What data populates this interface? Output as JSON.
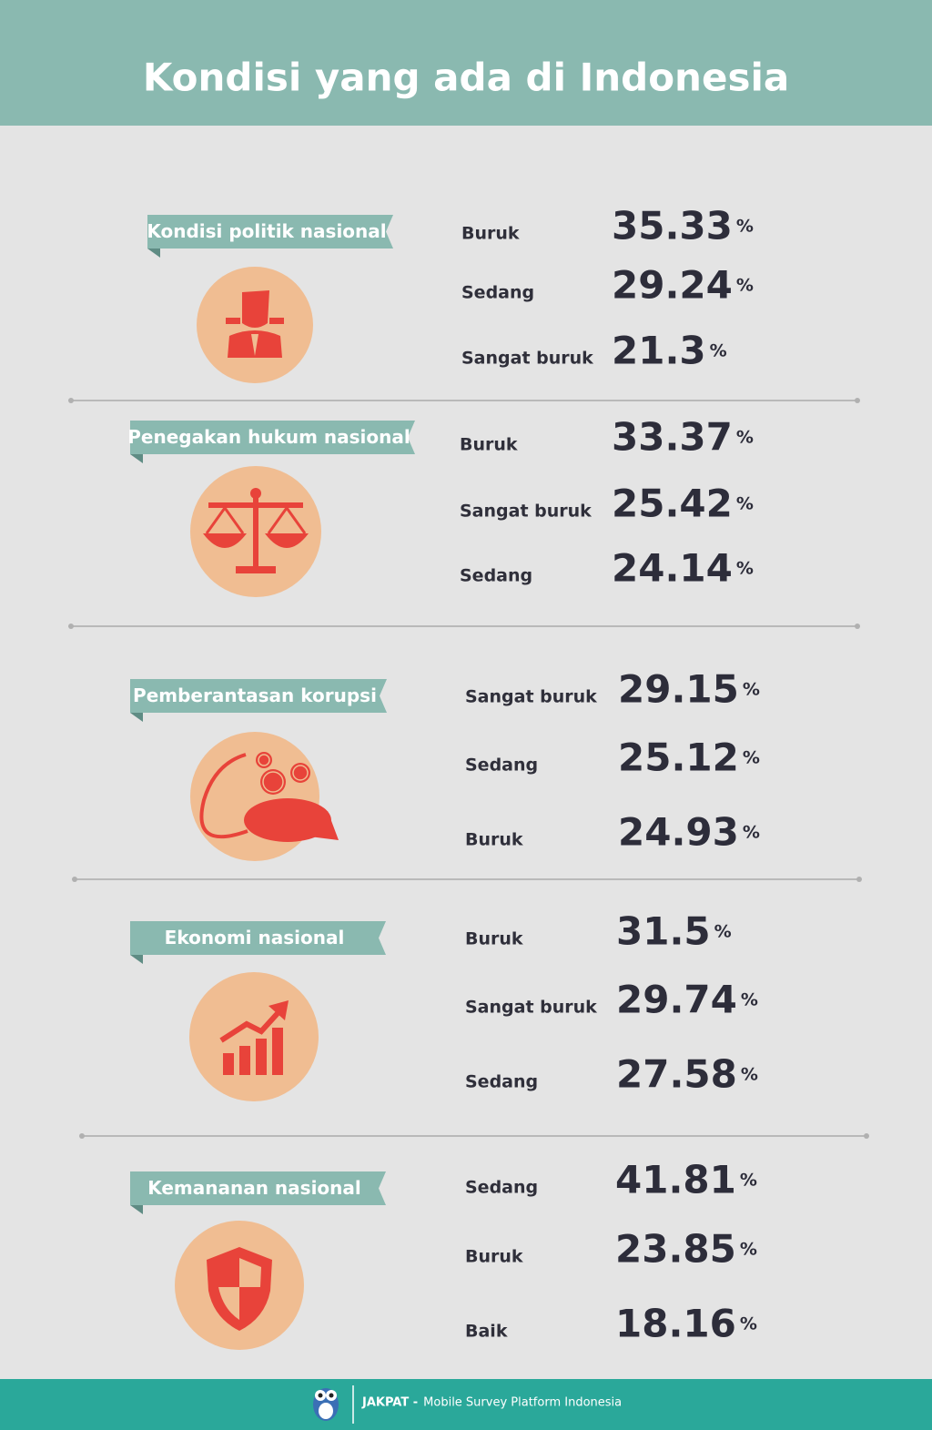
{
  "header": {
    "title": "Kondisi yang ada di Indonesia"
  },
  "sections": [
    {
      "label": "Kondisi politik nasional",
      "items": [
        {
          "label": "Buruk",
          "value": 35.33,
          "unit": "%"
        },
        {
          "label": "Sedang",
          "value": 29.24,
          "unit": "%"
        },
        {
          "label": "Sangat buruk",
          "value": 21.3,
          "unit": "%"
        }
      ]
    },
    {
      "label": "Penegakan hukum nasional",
      "items": [
        {
          "label": "Buruk",
          "value": 33.37,
          "unit": "%"
        },
        {
          "label": "Sangat buruk",
          "value": 25.42,
          "unit": "%"
        },
        {
          "label": "Sedang",
          "value": 24.14,
          "unit": "%"
        }
      ]
    },
    {
      "label": "Pemberantasan korupsi",
      "items": [
        {
          "label": "Sangat buruk",
          "value": 29.15,
          "unit": "%"
        },
        {
          "label": "Sedang",
          "value": 25.12,
          "unit": "%"
        },
        {
          "label": "Buruk",
          "value": 24.93,
          "unit": "%"
        }
      ]
    },
    {
      "label": "Ekonomi nasional",
      "items": [
        {
          "label": "Buruk",
          "value": 31.5,
          "unit": "%"
        },
        {
          "label": "Sangat buruk",
          "value": 29.74,
          "unit": "%"
        },
        {
          "label": "Sedang",
          "value": 27.58,
          "unit": "%"
        }
      ]
    },
    {
      "label": "Kemananan nasional",
      "items": [
        {
          "label": "Sedang",
          "value": 41.81,
          "unit": "%"
        },
        {
          "label": "Buruk",
          "value": 23.85,
          "unit": "%"
        },
        {
          "label": "Baik",
          "value": 18.16,
          "unit": "%"
        }
      ]
    }
  ],
  "footer": {
    "brand": "JAKPAT -",
    "tagline": "Mobile Survey Platform Indonesia"
  }
}
